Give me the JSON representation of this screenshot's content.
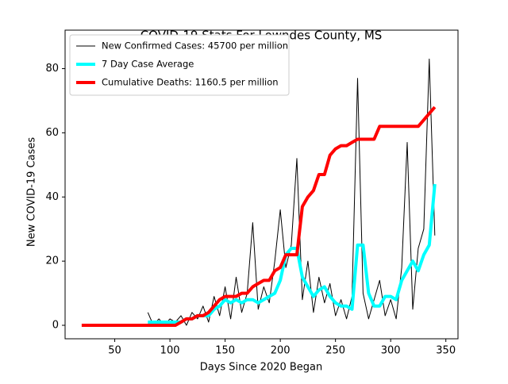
{
  "chart_data": {
    "type": "line",
    "title": "COVID-19 Stats For Lowndes County, MS",
    "xlabel": "Days Since 2020 Began",
    "ylabel": "New COVID-19 Cases",
    "legend": "upper left",
    "x": [
      20,
      25,
      30,
      35,
      40,
      45,
      50,
      55,
      60,
      65,
      70,
      75,
      80,
      85,
      90,
      95,
      100,
      105,
      110,
      115,
      120,
      125,
      130,
      135,
      140,
      145,
      150,
      155,
      160,
      165,
      170,
      175,
      180,
      185,
      190,
      195,
      200,
      205,
      210,
      215,
      220,
      225,
      230,
      235,
      240,
      245,
      250,
      255,
      260,
      265,
      270,
      275,
      280,
      285,
      290,
      295,
      300,
      305,
      310,
      315,
      320,
      325,
      330,
      335,
      340
    ],
    "series": [
      {
        "name": "New Confirmed Cases: 45700 per million",
        "color": "#000000",
        "line_width": 1,
        "values": [
          null,
          null,
          null,
          null,
          null,
          null,
          null,
          null,
          null,
          null,
          null,
          null,
          4,
          0,
          2,
          0,
          2,
          1,
          3,
          0,
          4,
          2,
          6,
          1,
          9,
          3,
          12,
          2,
          15,
          4,
          10,
          32,
          5,
          12,
          7,
          20,
          36,
          18,
          25,
          52,
          8,
          20,
          4,
          15,
          7,
          13,
          3,
          8,
          2,
          9,
          77,
          10,
          2,
          8,
          14,
          3,
          8,
          2,
          18,
          57,
          5,
          24,
          30,
          83,
          28
        ]
      },
      {
        "name": "7 Day Case Average",
        "color": "#00ffff",
        "line_width": 4,
        "values": [
          null,
          null,
          null,
          null,
          null,
          null,
          null,
          null,
          null,
          null,
          null,
          null,
          1,
          1,
          1,
          1,
          1,
          1,
          1,
          2,
          2,
          3,
          3,
          3,
          5,
          6,
          8,
          7,
          8,
          7,
          8,
          8,
          7,
          8,
          9,
          10,
          14,
          22,
          24,
          24,
          15,
          12,
          9,
          11,
          12,
          9,
          7,
          6,
          6,
          5,
          25,
          25,
          10,
          6,
          6,
          9,
          9,
          8,
          14,
          17,
          20,
          17,
          22,
          25,
          44
        ]
      },
      {
        "name": "Cumulative Deaths: 1160.5 per million",
        "color": "#ff0000",
        "line_width": 4,
        "values": [
          0,
          0,
          0,
          0,
          0,
          0,
          0,
          0,
          0,
          0,
          0,
          0,
          0,
          0,
          0,
          0,
          0,
          0,
          1,
          2,
          2,
          3,
          3,
          4,
          6,
          8,
          9,
          9,
          9,
          10,
          10,
          12,
          13,
          14,
          14,
          17,
          18,
          22,
          22,
          22,
          37,
          40,
          42,
          47,
          47,
          53,
          55,
          56,
          56,
          57,
          58,
          58,
          58,
          58,
          62,
          62,
          62,
          62,
          62,
          62,
          62,
          62,
          64,
          66,
          68
        ]
      }
    ],
    "xlim": [
      5,
      361
    ],
    "xticks": [
      50,
      100,
      150,
      200,
      250,
      300,
      350
    ],
    "ylim": [
      -4.2,
      92
    ],
    "yticks": [
      0,
      20,
      40,
      60,
      80
    ]
  }
}
